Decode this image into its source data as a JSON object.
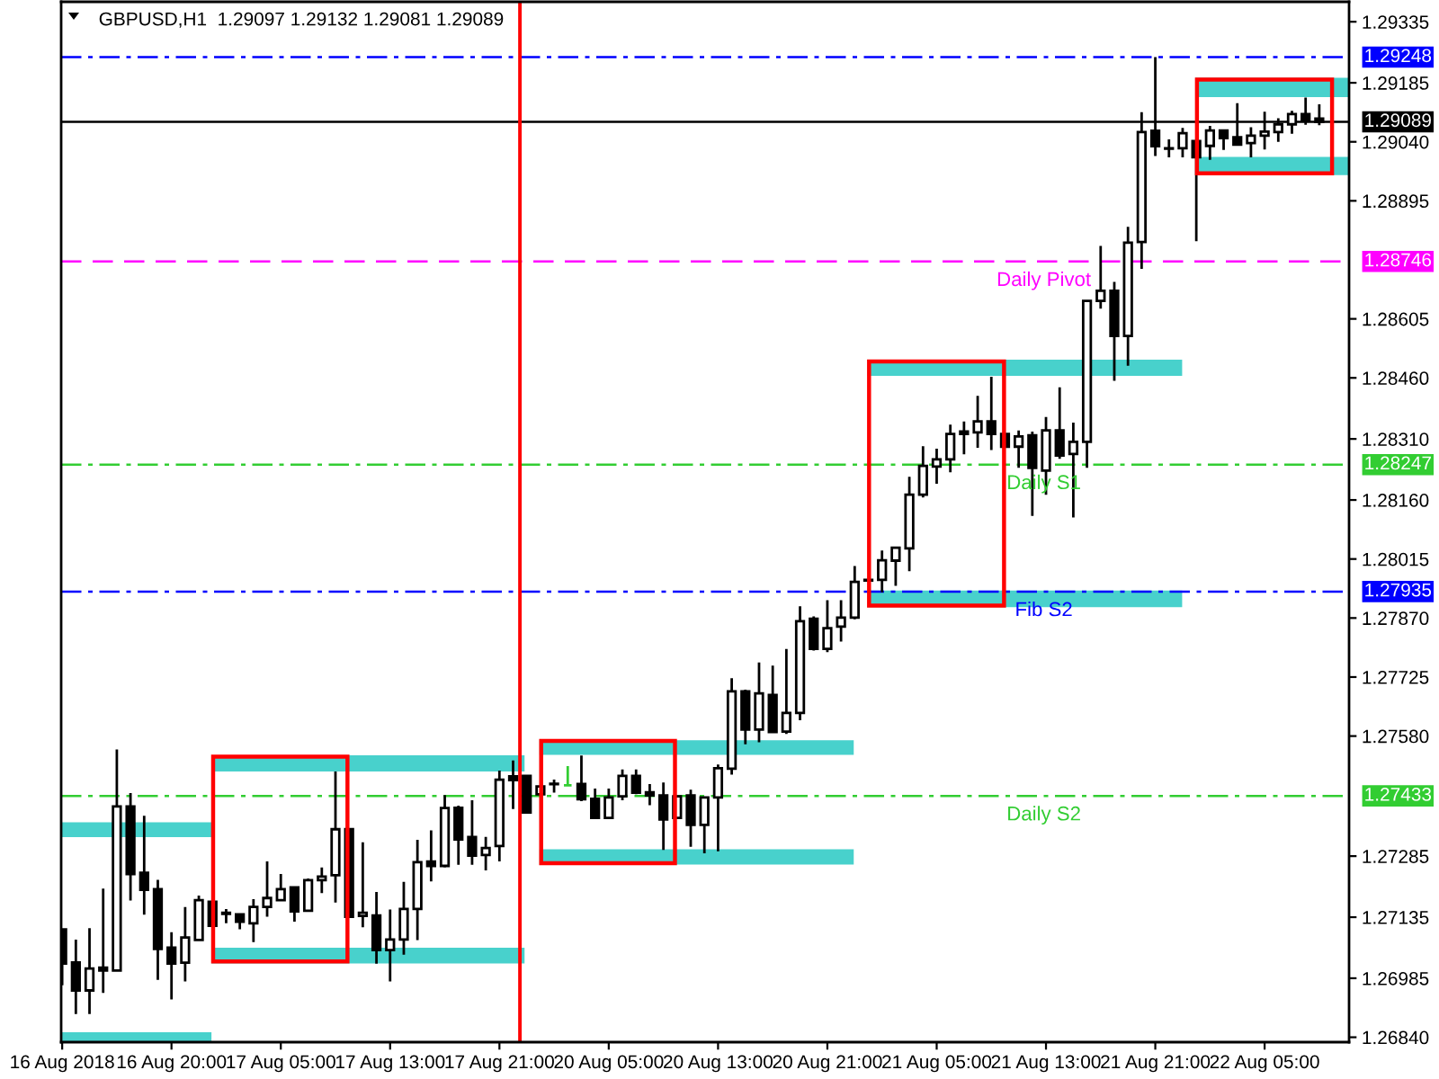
{
  "chart_data": {
    "type": "candlestick",
    "title": "GBPUSD,H1  1.29097 1.29132 1.29081 1.29089",
    "categories": [
      "16 Aug 2018",
      null,
      null,
      null,
      null,
      null,
      null,
      null,
      "16 Aug 20:00",
      null,
      null,
      null,
      null,
      null,
      null,
      null,
      "17 Aug 05:00",
      null,
      null,
      null,
      null,
      null,
      null,
      null,
      "17 Aug 13:00",
      null,
      null,
      null,
      null,
      null,
      null,
      null,
      "17 Aug 21:00",
      null,
      null,
      null,
      null,
      null,
      null,
      null,
      "20 Aug 05:00",
      null,
      null,
      null,
      null,
      null,
      null,
      null,
      "20 Aug 13:00",
      null,
      null,
      null,
      null,
      null,
      null,
      null,
      "20 Aug 21:00",
      null,
      null,
      null,
      null,
      null,
      null,
      null,
      "21 Aug 05:00",
      null,
      null,
      null,
      null,
      null,
      null,
      null,
      "21 Aug 13:00",
      null,
      null,
      null,
      null,
      null,
      null,
      null,
      "21 Aug 21:00",
      null,
      null,
      null,
      null,
      null,
      null,
      null,
      "22 Aug 05:00",
      null,
      null,
      null,
      null
    ],
    "ohlc": [
      [
        1.27105,
        1.27105,
        1.26968,
        1.27021
      ],
      [
        1.27024,
        1.2708,
        1.26897,
        1.26955
      ],
      [
        1.26955,
        1.27108,
        1.26897,
        1.27009
      ],
      [
        1.27011,
        1.27205,
        1.26949,
        1.27004
      ],
      [
        1.27004,
        1.27547,
        1.27004,
        1.27407
      ],
      [
        1.27407,
        1.2744,
        1.27176,
        1.27241
      ],
      [
        1.27244,
        1.27384,
        1.27141,
        1.27202
      ],
      [
        1.27204,
        1.27227,
        1.26981,
        1.27057
      ],
      [
        1.2706,
        1.27098,
        1.26933,
        1.27021
      ],
      [
        1.27023,
        1.2716,
        1.26977,
        1.27085
      ],
      [
        1.27079,
        1.27188,
        1.27079,
        1.27177
      ],
      [
        1.27173,
        1.27174,
        1.27113,
        1.27114
      ],
      [
        1.27146,
        1.27155,
        1.2712,
        1.27143
      ],
      [
        1.27142,
        1.27142,
        1.27105,
        1.27124
      ],
      [
        1.2712,
        1.27179,
        1.27074,
        1.2716
      ],
      [
        1.2716,
        1.27272,
        1.27136,
        1.27182
      ],
      [
        1.27177,
        1.27241,
        1.27176,
        1.27204
      ],
      [
        1.27208,
        1.27208,
        1.27124,
        1.27149
      ],
      [
        1.27151,
        1.2723,
        1.27149,
        1.27226
      ],
      [
        1.27226,
        1.27257,
        1.27194,
        1.27235
      ],
      [
        1.27238,
        1.27493,
        1.27171,
        1.27351
      ],
      [
        1.27351,
        1.27351,
        1.27136,
        1.27136
      ],
      [
        1.27138,
        1.27319,
        1.2711,
        1.27146
      ],
      [
        1.27139,
        1.27197,
        1.27021,
        1.27054
      ],
      [
        1.27054,
        1.27154,
        1.26977,
        1.2708
      ],
      [
        1.2708,
        1.27222,
        1.27043,
        1.27155
      ],
      [
        1.27155,
        1.27325,
        1.27079,
        1.2727
      ],
      [
        1.27272,
        1.27348,
        1.27223,
        1.27261
      ],
      [
        1.27261,
        1.27435,
        1.27257,
        1.27403
      ],
      [
        1.27404,
        1.27409,
        1.27264,
        1.27326
      ],
      [
        1.27332,
        1.27422,
        1.27264,
        1.27286
      ],
      [
        1.27288,
        1.27332,
        1.2725,
        1.27305
      ],
      [
        1.2731,
        1.27495,
        1.27272,
        1.27473
      ],
      [
        1.27481,
        1.2752,
        1.27401,
        1.27472
      ],
      [
        1.27482,
        1.27482,
        1.27392,
        1.27392
      ],
      [
        1.27437,
        1.27459,
        1.27435,
        1.27456
      ],
      [
        1.27463,
        1.27473,
        1.27441,
        1.27462
      ],
      [
        1.27459,
        1.27506,
        1.27459,
        1.27459
      ],
      [
        1.27462,
        1.27532,
        1.2742,
        1.27425
      ],
      [
        1.27426,
        1.27451,
        1.27379,
        1.27379
      ],
      [
        1.27379,
        1.27451,
        1.27379,
        1.27429
      ],
      [
        1.27432,
        1.27498,
        1.27422,
        1.27482
      ],
      [
        1.27482,
        1.27498,
        1.27437,
        1.27441
      ],
      [
        1.27442,
        1.27462,
        1.2741,
        1.27434
      ],
      [
        1.27434,
        1.27466,
        1.273,
        1.27375
      ],
      [
        1.27379,
        1.27434,
        1.27379,
        1.27432
      ],
      [
        1.27434,
        1.27448,
        1.27308,
        1.27362
      ],
      [
        1.27362,
        1.27432,
        1.27292,
        1.27429
      ],
      [
        1.27429,
        1.2751,
        1.27297,
        1.27501
      ],
      [
        1.275,
        1.27722,
        1.27485,
        1.2769
      ],
      [
        1.2769,
        1.27694,
        1.2756,
        1.27596
      ],
      [
        1.27596,
        1.27761,
        1.27565,
        1.27685
      ],
      [
        1.27681,
        1.27753,
        1.27587,
        1.2759
      ],
      [
        1.27591,
        1.27794,
        1.27585,
        1.27637
      ],
      [
        1.27637,
        1.27899,
        1.27619,
        1.27862
      ],
      [
        1.27868,
        1.27874,
        1.2779,
        1.27794
      ],
      [
        1.27794,
        1.27914,
        1.27786,
        1.27845
      ],
      [
        1.27849,
        1.27914,
        1.27812,
        1.27871
      ],
      [
        1.27871,
        1.27998,
        1.27867,
        1.27959
      ],
      [
        1.27964,
        1.27964,
        1.27962,
        1.27962
      ],
      [
        1.27964,
        1.28036,
        1.27933,
        1.28012
      ],
      [
        1.28011,
        1.28043,
        1.27949,
        1.28043
      ],
      [
        1.28041,
        1.28217,
        1.27985,
        1.28173
      ],
      [
        1.28173,
        1.28292,
        1.28166,
        1.28244
      ],
      [
        1.28242,
        1.28286,
        1.282,
        1.2826
      ],
      [
        1.2826,
        1.28345,
        1.28228,
        1.28322
      ],
      [
        1.28328,
        1.28353,
        1.28272,
        1.28322
      ],
      [
        1.28326,
        1.28416,
        1.28288,
        1.28353
      ],
      [
        1.28353,
        1.28463,
        1.28283,
        1.28322
      ],
      [
        1.28322,
        1.28322,
        1.28291,
        1.28291
      ],
      [
        1.28291,
        1.28331,
        1.28239,
        1.28316
      ],
      [
        1.28319,
        1.28328,
        1.28121,
        1.28239
      ],
      [
        1.28232,
        1.28364,
        1.28173,
        1.28331
      ],
      [
        1.28331,
        1.28437,
        1.28261,
        1.28269
      ],
      [
        1.28273,
        1.2835,
        1.28117,
        1.28303
      ],
      [
        1.28303,
        1.28649,
        1.28239,
        1.28649
      ],
      [
        1.28649,
        1.28784,
        1.2863,
        1.28674
      ],
      [
        1.28674,
        1.28696,
        1.28453,
        1.28563
      ],
      [
        1.28563,
        1.28831,
        1.2849,
        1.28792
      ],
      [
        1.28794,
        1.29113,
        1.28728,
        1.29064
      ],
      [
        1.29067,
        1.29248,
        1.29005,
        1.29029
      ],
      [
        1.29024,
        1.29046,
        1.29002,
        1.29023
      ],
      [
        1.29024,
        1.29074,
        1.29002,
        1.29061
      ],
      [
        1.29042,
        1.29042,
        1.28796,
        1.29002
      ],
      [
        1.2903,
        1.29079,
        1.28996,
        1.29068
      ],
      [
        1.29068,
        1.29068,
        1.2902,
        1.29049
      ],
      [
        1.29051,
        1.29135,
        1.29033,
        1.29033
      ],
      [
        1.29037,
        1.29076,
        1.29002,
        1.29055
      ],
      [
        1.29055,
        1.29114,
        1.29021,
        1.29065
      ],
      [
        1.29064,
        1.29098,
        1.2904,
        1.29083
      ],
      [
        1.29083,
        1.29116,
        1.2906,
        1.29108
      ],
      [
        1.29108,
        1.29149,
        1.29082,
        1.29093
      ],
      [
        1.29097,
        1.29132,
        1.29081,
        1.29089
      ]
    ],
    "colors": [
      "#000000",
      "#000000",
      "#ffffff",
      "#000000",
      "#ffffff",
      "#000000",
      "#000000",
      "#000000",
      "#000000",
      "#ffffff",
      "#ffffff",
      "#000000",
      "#000000",
      "#000000",
      "#ffffff",
      "#ffffff",
      "#ffffff",
      "#000000",
      "#ffffff",
      "#ffffff",
      "#ffffff",
      "#000000",
      "#ffffff",
      "#000000",
      "#ffffff",
      "#ffffff",
      "#ffffff",
      "#000000",
      "#ffffff",
      "#000000",
      "#000000",
      "#ffffff",
      "#ffffff",
      "#000000",
      "#000000",
      "#ffffff",
      "#000000",
      "#32cd32",
      "#000000",
      "#000000",
      "#ffffff",
      "#ffffff",
      "#000000",
      "#000000",
      "#000000",
      "#ffffff",
      "#000000",
      "#ffffff",
      "#ffffff",
      "#ffffff",
      "#000000",
      "#ffffff",
      "#000000",
      "#ffffff",
      "#ffffff",
      "#000000",
      "#ffffff",
      "#ffffff",
      "#ffffff",
      "#000000",
      "#ffffff",
      "#ffffff",
      "#ffffff",
      "#ffffff",
      "#ffffff",
      "#ffffff",
      "#000000",
      "#ffffff",
      "#000000",
      "#000000",
      "#ffffff",
      "#000000",
      "#ffffff",
      "#000000",
      "#ffffff",
      "#ffffff",
      "#ffffff",
      "#000000",
      "#ffffff",
      "#ffffff",
      "#000000",
      "#000000",
      "#ffffff",
      "#000000",
      "#ffffff",
      "#000000",
      "#000000",
      "#ffffff",
      "#ffffff",
      "#ffffff",
      "#ffffff",
      "#000000",
      "#000000"
    ],
    "ylim": [
      1.26828,
      1.29384
    ],
    "yticks": [
      1.29335,
      1.29185,
      {
        "value": 1.2904,
        "label": "1.29040"
      },
      1.28895,
      1.28605,
      {
        "value": 1.2846,
        "label": "1.28460"
      },
      {
        "value": 1.2831,
        "label": "1.28310"
      },
      {
        "value": 1.2816,
        "label": "1.28160"
      },
      1.28015,
      {
        "value": 1.2787,
        "label": "1.27870"
      },
      1.27725,
      {
        "value": 1.2758,
        "label": "1.27580"
      },
      1.27285,
      1.27135,
      1.26985,
      {
        "value": 1.2684,
        "label": "1.26840"
      }
    ],
    "ref_lines": [
      {
        "axis": "y",
        "value": 1.29248,
        "label": "1.29248",
        "color": "#0000ff",
        "line_style": "dashdot"
      },
      {
        "axis": "y",
        "value": 1.29089,
        "label": "1.29089",
        "color": "#000000",
        "line_style": "solid"
      },
      {
        "axis": "y",
        "value": 1.28746,
        "label": "1.28746",
        "color": "#ff00ff",
        "line_style": "dashed"
      },
      {
        "axis": "y",
        "value": 1.28247,
        "label": "1.28247",
        "color": "#32cd32",
        "line_style": "dashdot"
      },
      {
        "axis": "y",
        "value": 1.27935,
        "label": "1.27935",
        "color": "#0000ff",
        "line_style": "dashdot"
      },
      {
        "axis": "y",
        "value": 1.27433,
        "label": "1.27433",
        "color": "#32cd32",
        "line_style": "dashdot"
      }
    ],
    "annotations": [
      {
        "text": "Daily Pivot",
        "y": 1.28746
      },
      {
        "text": "Daily S1",
        "y": 1.28247
      },
      {
        "text": "Fib S2",
        "y": 1.27935
      },
      {
        "text": "Daily S2",
        "y": 1.27433
      }
    ]
  }
}
